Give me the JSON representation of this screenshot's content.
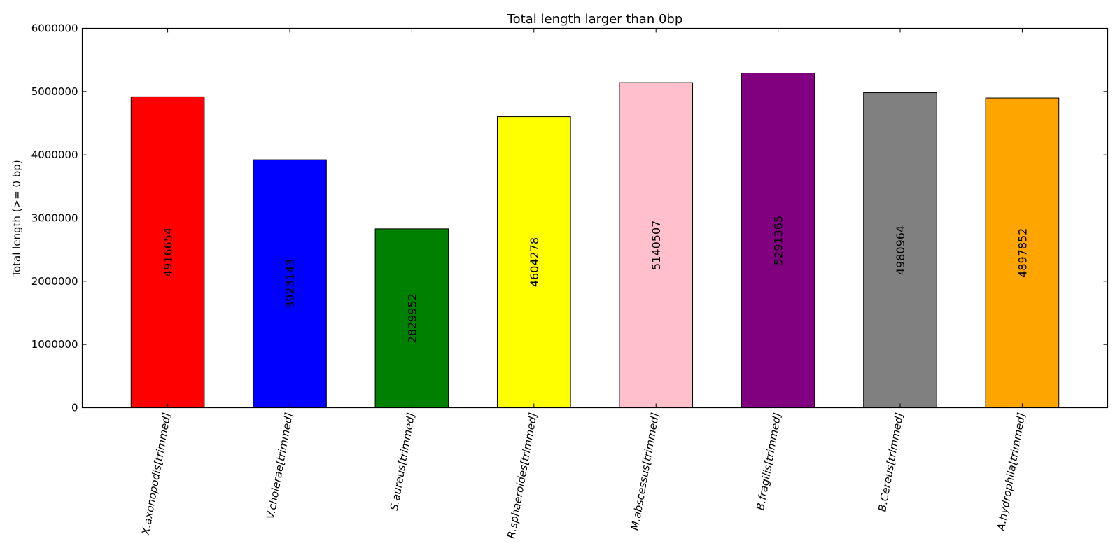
{
  "chart_data": {
    "type": "bar",
    "title": "Total length larger than 0bp",
    "xlabel": "",
    "ylabel": "Total length (>= 0 bp)",
    "ylim": [
      0,
      6000000
    ],
    "yticks": [
      0,
      1000000,
      2000000,
      3000000,
      4000000,
      5000000,
      6000000
    ],
    "ytick_labels": [
      "0",
      "1000000",
      "2000000",
      "3000000",
      "4000000",
      "5000000",
      "6000000"
    ],
    "categories": [
      "X.axonopodis[trimmed]",
      "V.cholerae[trimmed]",
      "S.aureus[trimmed]",
      "R.sphaeroides[trimmed]",
      "M.abscessus[trimmed]",
      "B.fragilis[trimmed]",
      "B.Cereus[trimmed]",
      "A.hydrophila[trimmed]"
    ],
    "values": [
      4916654,
      3923143,
      2829952,
      4604278,
      5140507,
      5291365,
      4980964,
      4897852
    ],
    "value_labels": [
      "4916654",
      "3923143",
      "2829952",
      "4604278",
      "5140507",
      "5291365",
      "4980964",
      "4897852"
    ],
    "colors": [
      "#ff0000",
      "#0000ff",
      "#008000",
      "#ffff00",
      "#ffc0cb",
      "#800080",
      "#808080",
      "#ffa500"
    ],
    "grid": false,
    "legend": "none"
  }
}
